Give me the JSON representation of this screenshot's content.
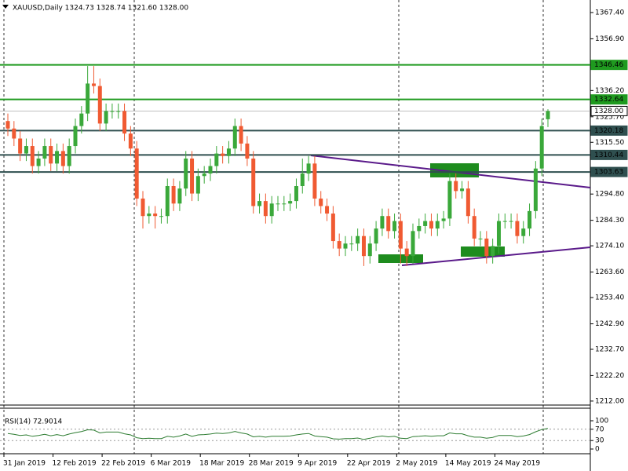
{
  "chart_data": [
    {
      "type": "candlestick",
      "title": "XAUUSD,Daily  1324.73 1328.74 1321.60 1328.00",
      "categories": [
        "31 Jan 2019",
        null,
        null,
        null,
        null,
        null,
        null,
        null,
        "12 Feb 2019",
        null,
        null,
        null,
        null,
        null,
        null,
        null,
        "22 Feb 2019",
        null,
        null,
        null,
        null,
        null,
        null,
        null,
        "6 Mar 2019",
        null,
        null,
        null,
        null,
        null,
        null,
        null,
        "18 Mar 2019",
        null,
        null,
        null,
        null,
        null,
        null,
        null,
        "28 Mar 2019",
        null,
        null,
        null,
        null,
        null,
        null,
        null,
        "9 Apr 2019",
        null,
        null,
        null,
        null,
        null,
        null,
        null,
        "22 Apr 2019",
        null,
        null,
        null,
        null,
        null,
        null,
        null,
        "2 May 2019",
        null,
        null,
        null,
        null,
        null,
        null,
        null,
        "14 May 2019",
        null,
        null,
        null,
        null,
        null,
        null,
        null,
        "24 May 2019",
        null,
        null,
        null,
        null,
        null,
        null,
        null,
        null
      ],
      "open": [
        1324,
        1321,
        1317,
        1311,
        1314,
        1306,
        1309,
        1314,
        1307,
        1312,
        1306,
        1314,
        1322,
        1327,
        1339,
        1338,
        1323,
        1328,
        1328,
        1328,
        1319,
        1313,
        1293,
        1286,
        1287,
        1286,
        1286,
        1298,
        1291,
        1297,
        1309,
        1295,
        1302,
        1303,
        1306,
        1311,
        1310,
        1313,
        1322,
        1315,
        1309,
        1290,
        1292,
        1286,
        1291,
        1291,
        1291,
        1292,
        1298,
        1303,
        1307,
        1293,
        1290,
        1287,
        1276,
        1273,
        1275,
        1275,
        1278,
        1270,
        1275,
        1281,
        1286,
        1280,
        1284,
        1273,
        1270,
        1280,
        1282,
        1284,
        1281,
        1284,
        1285,
        1300,
        1296,
        1297,
        1286,
        1277,
        1277,
        1270,
        1274,
        1284,
        1284,
        1284,
        1278,
        1281,
        1288,
        1305,
        1324.73
      ],
      "high": [
        1327,
        1324,
        1320,
        1317,
        1317,
        1312,
        1317,
        1317,
        1315,
        1315,
        1317,
        1325,
        1330,
        1346,
        1346,
        1341,
        1331,
        1331,
        1331,
        1331,
        1322,
        1316,
        1296,
        1290,
        1290,
        1289,
        1301,
        1301,
        1300,
        1312,
        1312,
        1305,
        1306,
        1309,
        1314,
        1314,
        1316,
        1325,
        1325,
        1318,
        1312,
        1295,
        1295,
        1294,
        1294,
        1294,
        1295,
        1301,
        1309,
        1310,
        1310,
        1296,
        1293,
        1290,
        1279,
        1278,
        1278,
        1281,
        1281,
        1278,
        1284,
        1289,
        1289,
        1287,
        1287,
        1276,
        1283,
        1285,
        1287,
        1287,
        1287,
        1288,
        1303,
        1303,
        1300,
        1300,
        1289,
        1280,
        1280,
        1277,
        1287,
        1287,
        1287,
        1287,
        1284,
        1291,
        1308,
        1325,
        1328.74
      ],
      "low": [
        1318,
        1314,
        1308,
        1308,
        1303,
        1303,
        1306,
        1304,
        1304,
        1303,
        1303,
        1311,
        1319,
        1324,
        1335,
        1320,
        1320,
        1325,
        1325,
        1316,
        1310,
        1290,
        1281,
        1283,
        1281,
        1283,
        1283,
        1288,
        1288,
        1294,
        1292,
        1292,
        1299,
        1300,
        1303,
        1307,
        1307,
        1310,
        1312,
        1306,
        1287,
        1287,
        1283,
        1283,
        1288,
        1288,
        1288,
        1289,
        1295,
        1300,
        1290,
        1287,
        1284,
        1273,
        1270,
        1270,
        1272,
        1272,
        1266,
        1267,
        1272,
        1278,
        1277,
        1277,
        1267,
        1266,
        1267,
        1277,
        1279,
        1278,
        1278,
        1281,
        1282,
        1293,
        1293,
        1283,
        1274,
        1274,
        1267,
        1267,
        1271,
        1281,
        1281,
        1275,
        1275,
        1278,
        1285,
        1302,
        1321.6
      ],
      "close": [
        1321,
        1317,
        1311,
        1314,
        1306,
        1309,
        1314,
        1307,
        1312,
        1306,
        1314,
        1322,
        1327,
        1339,
        1338,
        1323,
        1328,
        1328,
        1328,
        1319,
        1313,
        1293,
        1286,
        1287,
        1286,
        1286,
        1298,
        1291,
        1297,
        1309,
        1295,
        1302,
        1303,
        1306,
        1311,
        1310,
        1313,
        1322,
        1315,
        1309,
        1290,
        1292,
        1286,
        1291,
        1291,
        1291,
        1292,
        1298,
        1303,
        1307,
        1293,
        1290,
        1287,
        1276,
        1273,
        1275,
        1275,
        1278,
        1270,
        1275,
        1281,
        1286,
        1280,
        1284,
        1273,
        1270,
        1280,
        1282,
        1284,
        1281,
        1284,
        1285,
        1300,
        1296,
        1297,
        1286,
        1277,
        1277,
        1270,
        1274,
        1284,
        1284,
        1284,
        1278,
        1281,
        1288,
        1305,
        1322,
        1328
      ],
      "up_color": "#3aa83a",
      "down_color": "#f05a32",
      "ylim": [
        1210.4,
        1369.9
      ],
      "yticks": [
        {
          "value": 1367.4,
          "label": "1367.40"
        },
        {
          "value": 1356.9,
          "label": "1356.90"
        },
        {
          "value": 1336.2,
          "label": "1336.20"
        },
        {
          "value": 1325.7,
          "label": "1325.70"
        },
        {
          "value": 1315.5,
          "label": "1315.50"
        },
        {
          "value": 1294.8,
          "label": "1294.80"
        },
        {
          "value": 1284.3,
          "label": "1284.30"
        },
        {
          "value": 1274.1,
          "label": "1274.10"
        },
        {
          "value": 1263.6,
          "label": "1263.60"
        },
        {
          "value": 1253.4,
          "label": "1253.40"
        },
        {
          "value": 1242.9,
          "label": "1242.90"
        },
        {
          "value": 1232.7,
          "label": "1232.70"
        },
        {
          "value": 1222.2,
          "label": "1222.20"
        },
        {
          "value": 1212,
          "label": "1212.00"
        }
      ],
      "levels": [
        {
          "value": 1346.46,
          "color": "#1f9a1f"
        },
        {
          "value": 1332.64,
          "color": "#1f9a1f"
        },
        {
          "value": 1328,
          "label": "1328.00",
          "color": "#ffffff"
        },
        {
          "value": 1320.18,
          "color": "#2f4f4f"
        },
        {
          "value": 1310.44,
          "color": "#2f4f4f"
        },
        {
          "value": 1303.63,
          "color": "#2f4f4f"
        }
      ]
    },
    {
      "type": "line",
      "title": "RSI(14) 72.9014",
      "values": [
        55,
        52,
        48,
        50,
        45,
        48,
        52,
        47,
        51,
        47,
        53,
        58,
        62,
        68,
        67,
        57,
        60,
        60,
        60,
        54,
        50,
        40,
        37,
        38,
        37,
        37,
        45,
        42,
        46,
        53,
        45,
        50,
        51,
        53,
        56,
        55,
        57,
        62,
        57,
        53,
        43,
        45,
        42,
        45,
        45,
        45,
        46,
        50,
        53,
        55,
        46,
        44,
        42,
        36,
        35,
        37,
        37,
        39,
        34,
        38,
        43,
        46,
        43,
        45,
        38,
        37,
        44,
        45,
        47,
        45,
        47,
        47,
        57,
        54,
        54,
        47,
        42,
        42,
        38,
        41,
        48,
        48,
        48,
        44,
        46,
        51,
        61,
        69,
        72.9014
      ],
      "color": "#2e7d32",
      "ylim": [
        0,
        100
      ],
      "yticks": [
        100,
        70,
        30,
        0
      ]
    }
  ]
}
